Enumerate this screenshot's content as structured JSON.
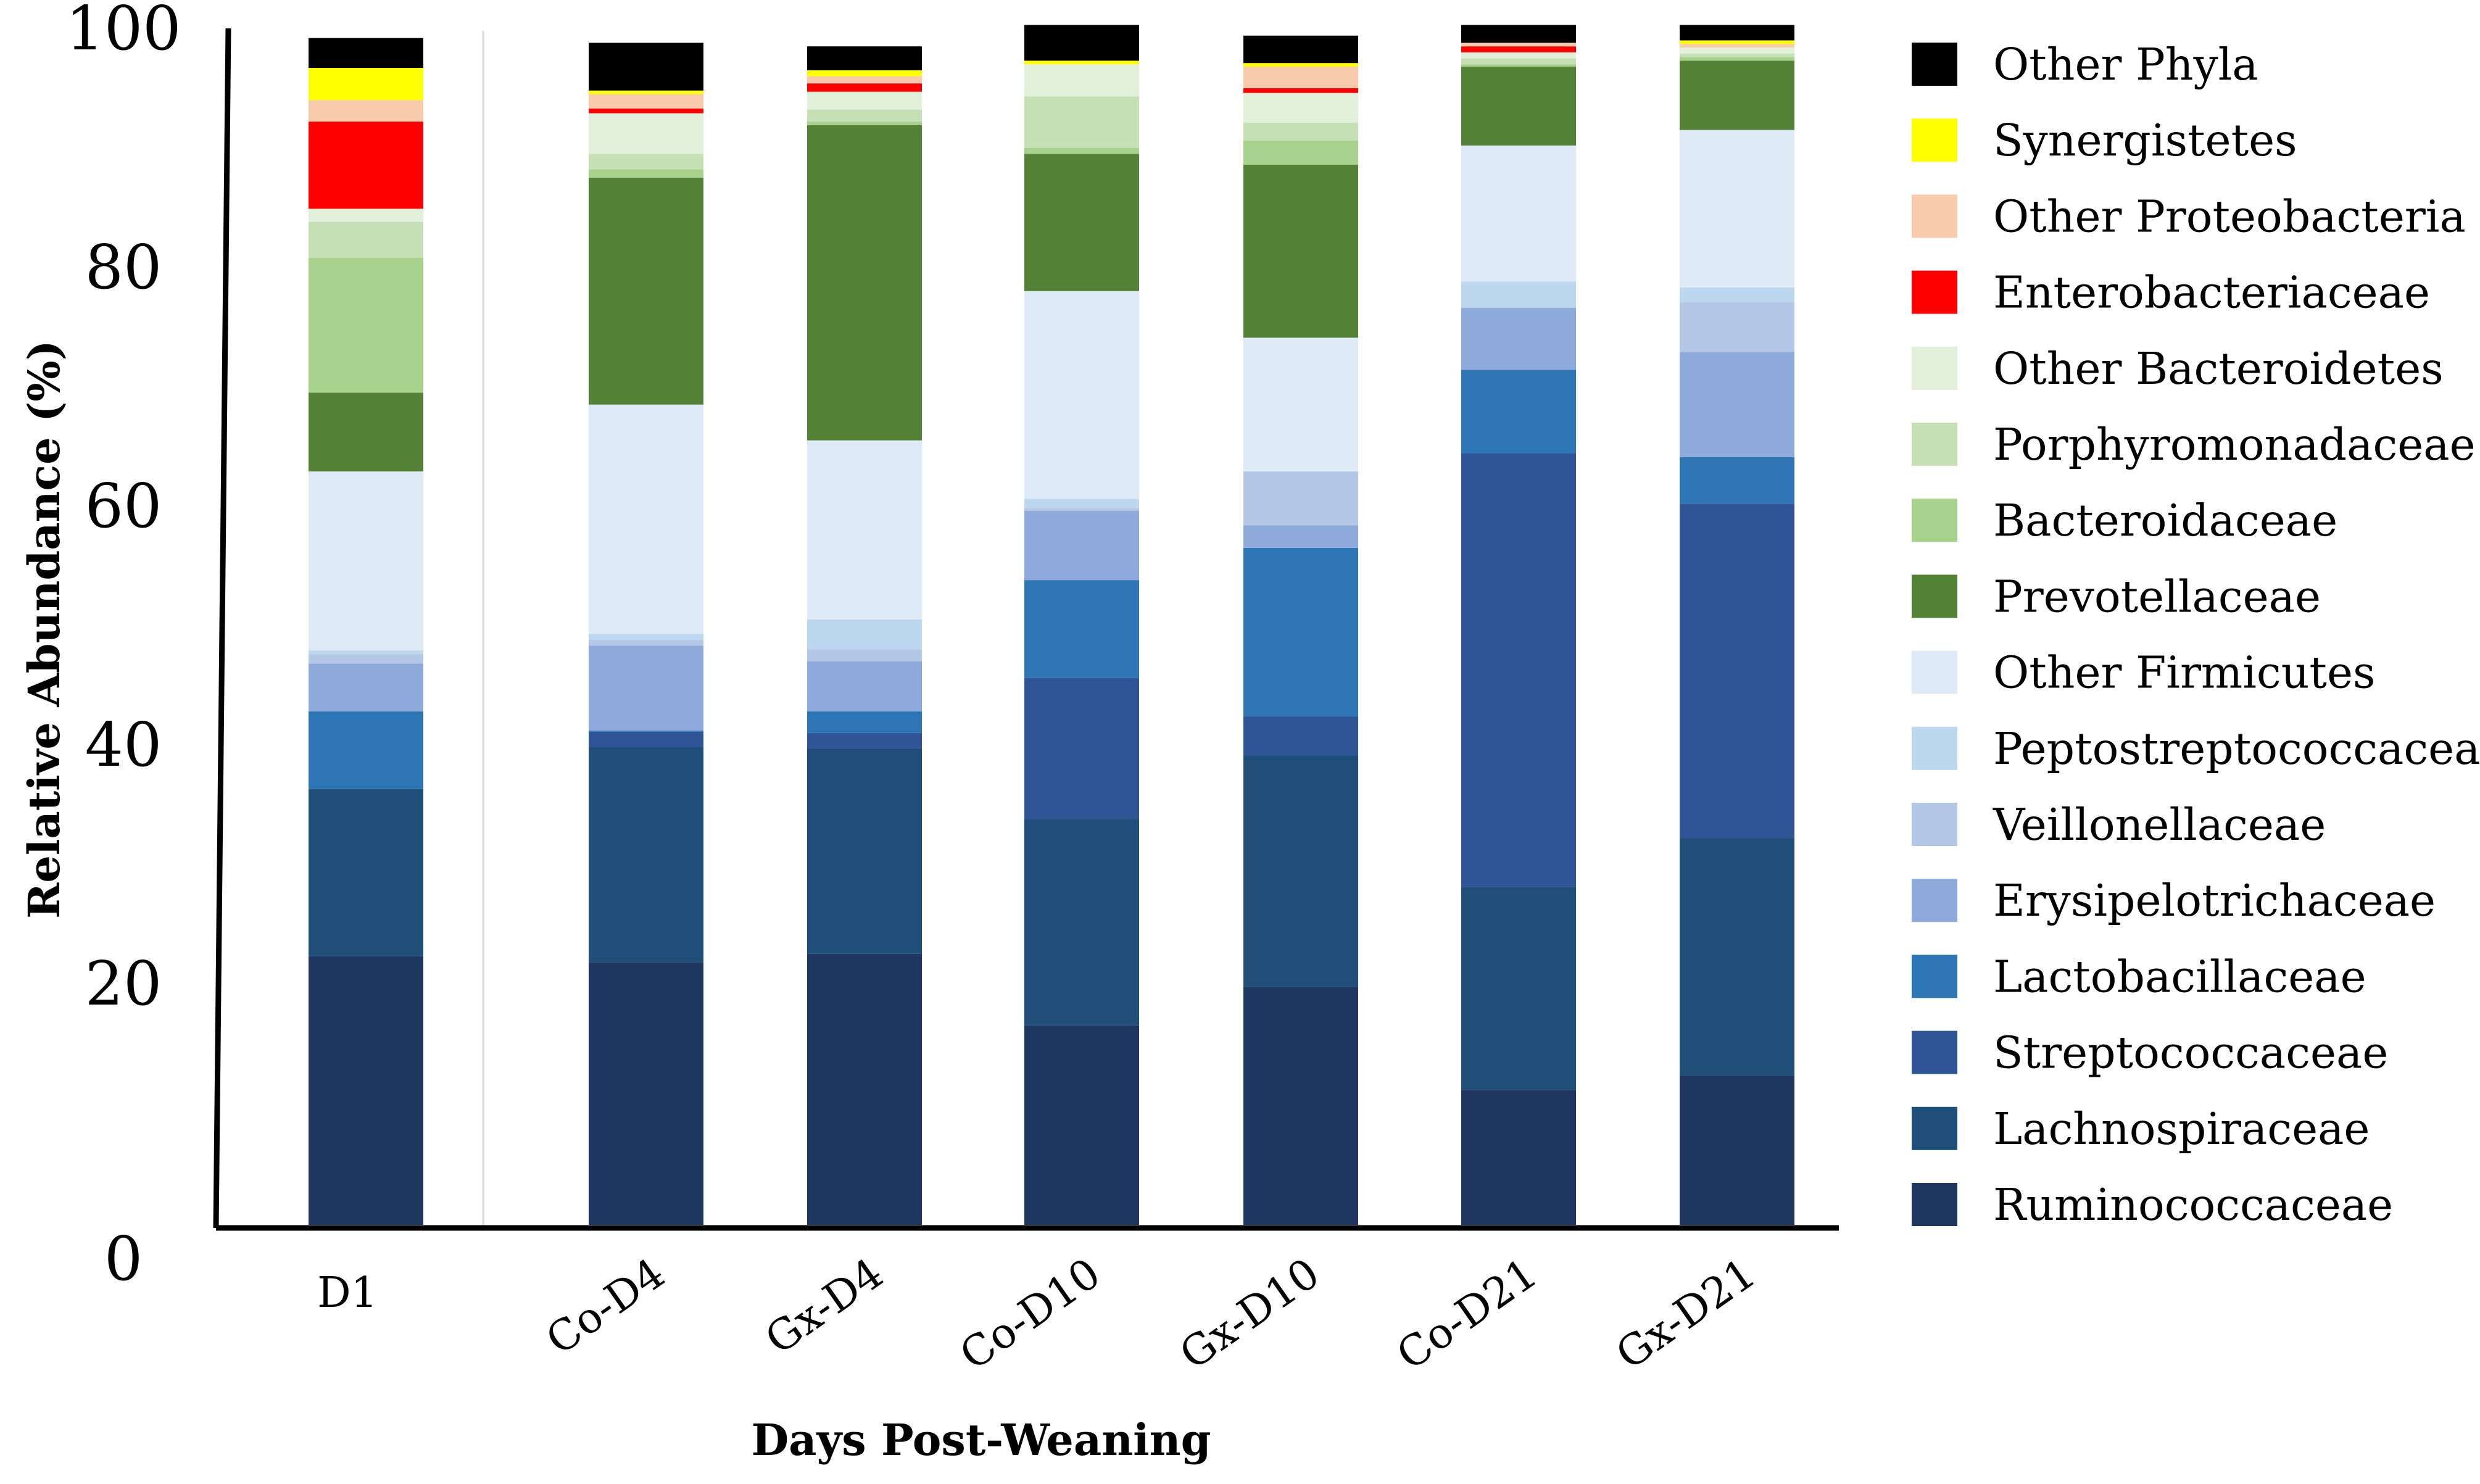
{
  "chart_data": {
    "type": "bar",
    "stacked": true,
    "categories": [
      "D1",
      "Co-D4",
      "Gx-D4",
      "Co-D10",
      "Gx-D10",
      "Co-D21",
      "Gx-D21"
    ],
    "xlabel": "Days Post-Weaning",
    "ylabel": "Relative Abundance  (%)",
    "ylim": [
      0,
      100
    ],
    "yticks": [
      0,
      20,
      40,
      60,
      80,
      100
    ],
    "legend_position": "right",
    "grid": false,
    "series": [
      {
        "name": "Ruminococcaceae",
        "color": "#1f3660",
        "values": [
          22.5,
          22.0,
          22.7,
          16.7,
          19.9,
          11.3,
          12.5
        ]
      },
      {
        "name": "Lachnospiraceae",
        "color": "#1f4e79",
        "values": [
          14.0,
          18.0,
          17.2,
          17.3,
          19.4,
          17.0,
          19.9
        ]
      },
      {
        "name": "Streptococcaceae",
        "color": "#2f5597",
        "values": [
          0.0,
          1.3,
          1.3,
          11.8,
          3.3,
          36.3,
          28.0
        ]
      },
      {
        "name": "Lactobacillaceae",
        "color": "#2e75b6",
        "values": [
          6.5,
          0.1,
          1.8,
          8.2,
          14.1,
          7.0,
          3.9
        ]
      },
      {
        "name": "Erysipelotrichaceae",
        "color": "#8eaadb",
        "values": [
          4.0,
          7.1,
          4.2,
          5.8,
          1.9,
          5.2,
          8.8
        ]
      },
      {
        "name": "Veillonellaceae",
        "color": "#b4c7e7",
        "values": [
          0.8,
          0.5,
          1.0,
          0.2,
          4.5,
          0.0,
          4.2
        ]
      },
      {
        "name": "Peptostreptococcaceae",
        "color": "#bdd7ee",
        "values": [
          0.3,
          0.5,
          2.5,
          0.8,
          0.0,
          2.2,
          1.2
        ]
      },
      {
        "name": "Other Firmicutes",
        "color": "#deebf7",
        "values": [
          15.0,
          19.2,
          15.0,
          17.4,
          11.2,
          11.4,
          13.2
        ]
      },
      {
        "name": "Prevotellaceae",
        "color": "#538135",
        "values": [
          6.6,
          19.0,
          26.4,
          11.5,
          14.5,
          6.6,
          5.8
        ]
      },
      {
        "name": "Bacteroidaceae",
        "color": "#a9d18e",
        "values": [
          11.3,
          0.7,
          0.3,
          0.5,
          2.0,
          0.2,
          0.3
        ]
      },
      {
        "name": "Porphyromonadaceae",
        "color": "#c5e0b4",
        "values": [
          3.0,
          1.3,
          1.0,
          4.3,
          1.5,
          0.5,
          0.3
        ]
      },
      {
        "name": "Other Bacteroidetes",
        "color": "#e2f0d9",
        "values": [
          1.1,
          3.4,
          1.5,
          2.7,
          2.5,
          0.5,
          0.5
        ]
      },
      {
        "name": "Enterobacteriaceae",
        "color": "#ff0000",
        "values": [
          7.3,
          0.4,
          0.7,
          0.0,
          0.4,
          0.5,
          0.0
        ]
      },
      {
        "name": "Other Proteobacteria",
        "color": "#f8cbad",
        "values": [
          1.8,
          1.2,
          0.6,
          0.0,
          1.8,
          0.3,
          0.3
        ]
      },
      {
        "name": "Synergistetes",
        "color": "#ffff00",
        "values": [
          2.7,
          0.3,
          0.5,
          0.3,
          0.3,
          0.0,
          0.3
        ]
      },
      {
        "name": "Other Phyla",
        "color": "#000000",
        "values": [
          2.5,
          4.0,
          2.0,
          3.0,
          2.3,
          1.5,
          1.3
        ]
      }
    ]
  }
}
